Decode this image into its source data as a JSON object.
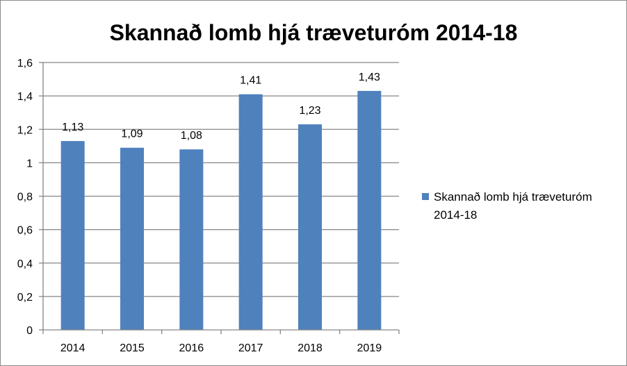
{
  "chart_data": {
    "type": "bar",
    "title": "Skannað lomb hjá træveturóm 2014-18",
    "categories": [
      "2014",
      "2015",
      "2016",
      "2017",
      "2018",
      "2019"
    ],
    "series": [
      {
        "name": "Skannað lomb hjá træveturóm 2014-18",
        "values": [
          1.13,
          1.09,
          1.08,
          1.41,
          1.23,
          1.43
        ],
        "value_labels": [
          "1,13",
          "1,09",
          "1,08",
          "1,41",
          "1,23",
          "1,43"
        ]
      }
    ],
    "ylim": [
      0,
      1.6
    ],
    "yticks": [
      0,
      0.2,
      0.4,
      0.6,
      0.8,
      1,
      1.2,
      1.4,
      1.6
    ],
    "ytick_labels": [
      "0",
      "0,2",
      "0,4",
      "0,6",
      "0,8",
      "1",
      "1,2",
      "1,4",
      "1,6"
    ],
    "xlabel": "",
    "ylabel": "",
    "grid": true,
    "legend_position": "right"
  },
  "colors": {
    "bar": "#4f81bd",
    "grid": "#868686",
    "axis": "#868686",
    "text": "#000000",
    "frame": "#8c8c8c"
  }
}
